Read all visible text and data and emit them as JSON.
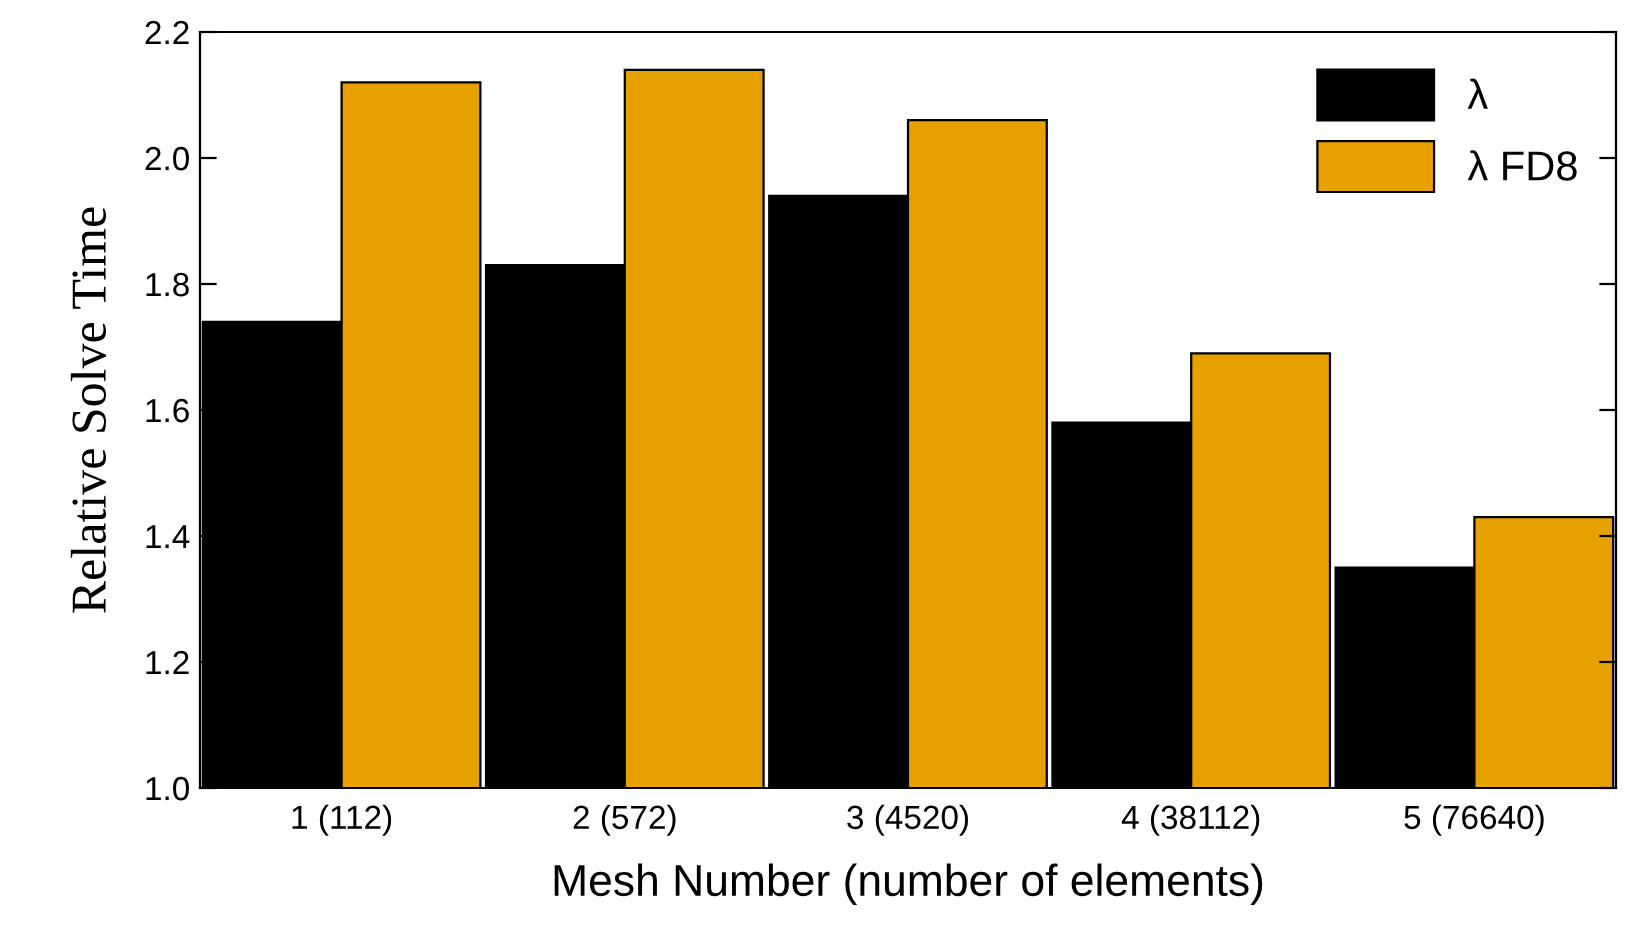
{
  "chart_data": {
    "type": "bar",
    "xlabel": "Mesh Number (number of elements)",
    "ylabel": "Relative Solve Time",
    "categories": [
      "1 (112)",
      "2 (572)",
      "3 (4520)",
      "4 (38112)",
      "5 (76640)"
    ],
    "series": [
      {
        "name": "λ",
        "color": "#000000",
        "values": [
          1.74,
          1.83,
          1.94,
          1.58,
          1.35
        ]
      },
      {
        "name": "λ FD8",
        "color": "#e6a000",
        "values": [
          2.12,
          2.14,
          2.06,
          1.69,
          1.43
        ]
      }
    ],
    "ylim": [
      1.0,
      2.2
    ],
    "yticks": [
      {
        "value": 1.0,
        "label": "1.0"
      },
      1.2,
      1.4,
      1.6,
      1.8,
      {
        "value": 2.0,
        "label": "2.0"
      },
      2.2
    ],
    "grid": false,
    "legend": "top right"
  }
}
